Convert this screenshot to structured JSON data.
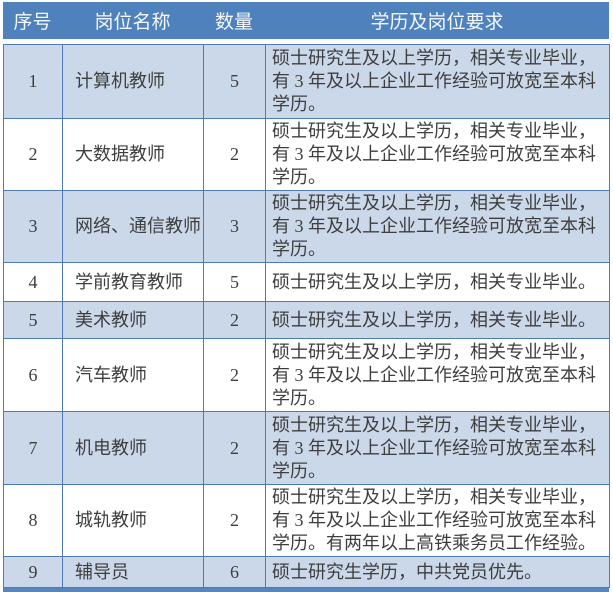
{
  "table": {
    "columns": [
      {
        "key": "no",
        "label": "序号"
      },
      {
        "key": "position",
        "label": "岗位名称"
      },
      {
        "key": "count",
        "label": "数量"
      },
      {
        "key": "requirement",
        "label": "学历及岗位要求"
      }
    ],
    "rows": [
      {
        "no": "1",
        "position": "计算机教师",
        "count": "5",
        "requirement": "硕士研究生及以上学历，相关专业毕业，有 3 年及以上企业工作经验可放宽至本科学历。",
        "band": true
      },
      {
        "no": "2",
        "position": "大数据教师",
        "count": "2",
        "requirement": "硕士研究生及以上学历，相关专业毕业，有 3 年及以上企业工作经验可放宽至本科学历。",
        "band": false
      },
      {
        "no": "3",
        "position": "网络、通信教师",
        "count": "3",
        "requirement": "硕士研究生及以上学历，相关专业毕业，有 3 年及以上企业工作经验可放宽至本科学历。",
        "band": true
      },
      {
        "no": "4",
        "position": "学前教育教师",
        "count": "5",
        "requirement": "硕士研究生及以上学历，相关专业毕业。",
        "band": false
      },
      {
        "no": "5",
        "position": "美术教师",
        "count": "2",
        "requirement": "硕士研究生及以上学历，相关专业毕业。",
        "band": true
      },
      {
        "no": "6",
        "position": "汽车教师",
        "count": "2",
        "requirement": "硕士研究生及以上学历，相关专业毕业，有 3 年及以上企业工作经验可放宽至本科学历。",
        "band": false
      },
      {
        "no": "7",
        "position": "机电教师",
        "count": "2",
        "requirement": "硕士研究生及以上学历，相关专业毕业，有 3 年及以上企业工作经验可放宽至本科学历。",
        "band": true
      },
      {
        "no": "8",
        "position": "城轨教师",
        "count": "2",
        "requirement": "硕士研究生及以上学历，相关专业毕业，有 3 年及以上企业工作经验可放宽至本科学历。有两年以上高铁乘务员工作经验。",
        "band": false
      },
      {
        "no": "9",
        "position": "辅导员",
        "count": "6",
        "requirement": "硕士研究生学历，中共党员优先。",
        "band": true
      }
    ],
    "colors": {
      "header_bg": "#4f81bd",
      "header_text": "#f3f8fc",
      "band_bg": "#cbd8ea",
      "plain_bg": "#ffffff",
      "border": "#4e7bb4",
      "body_text": "#3e3e3e",
      "bottom_bar": "#5586bd"
    }
  }
}
